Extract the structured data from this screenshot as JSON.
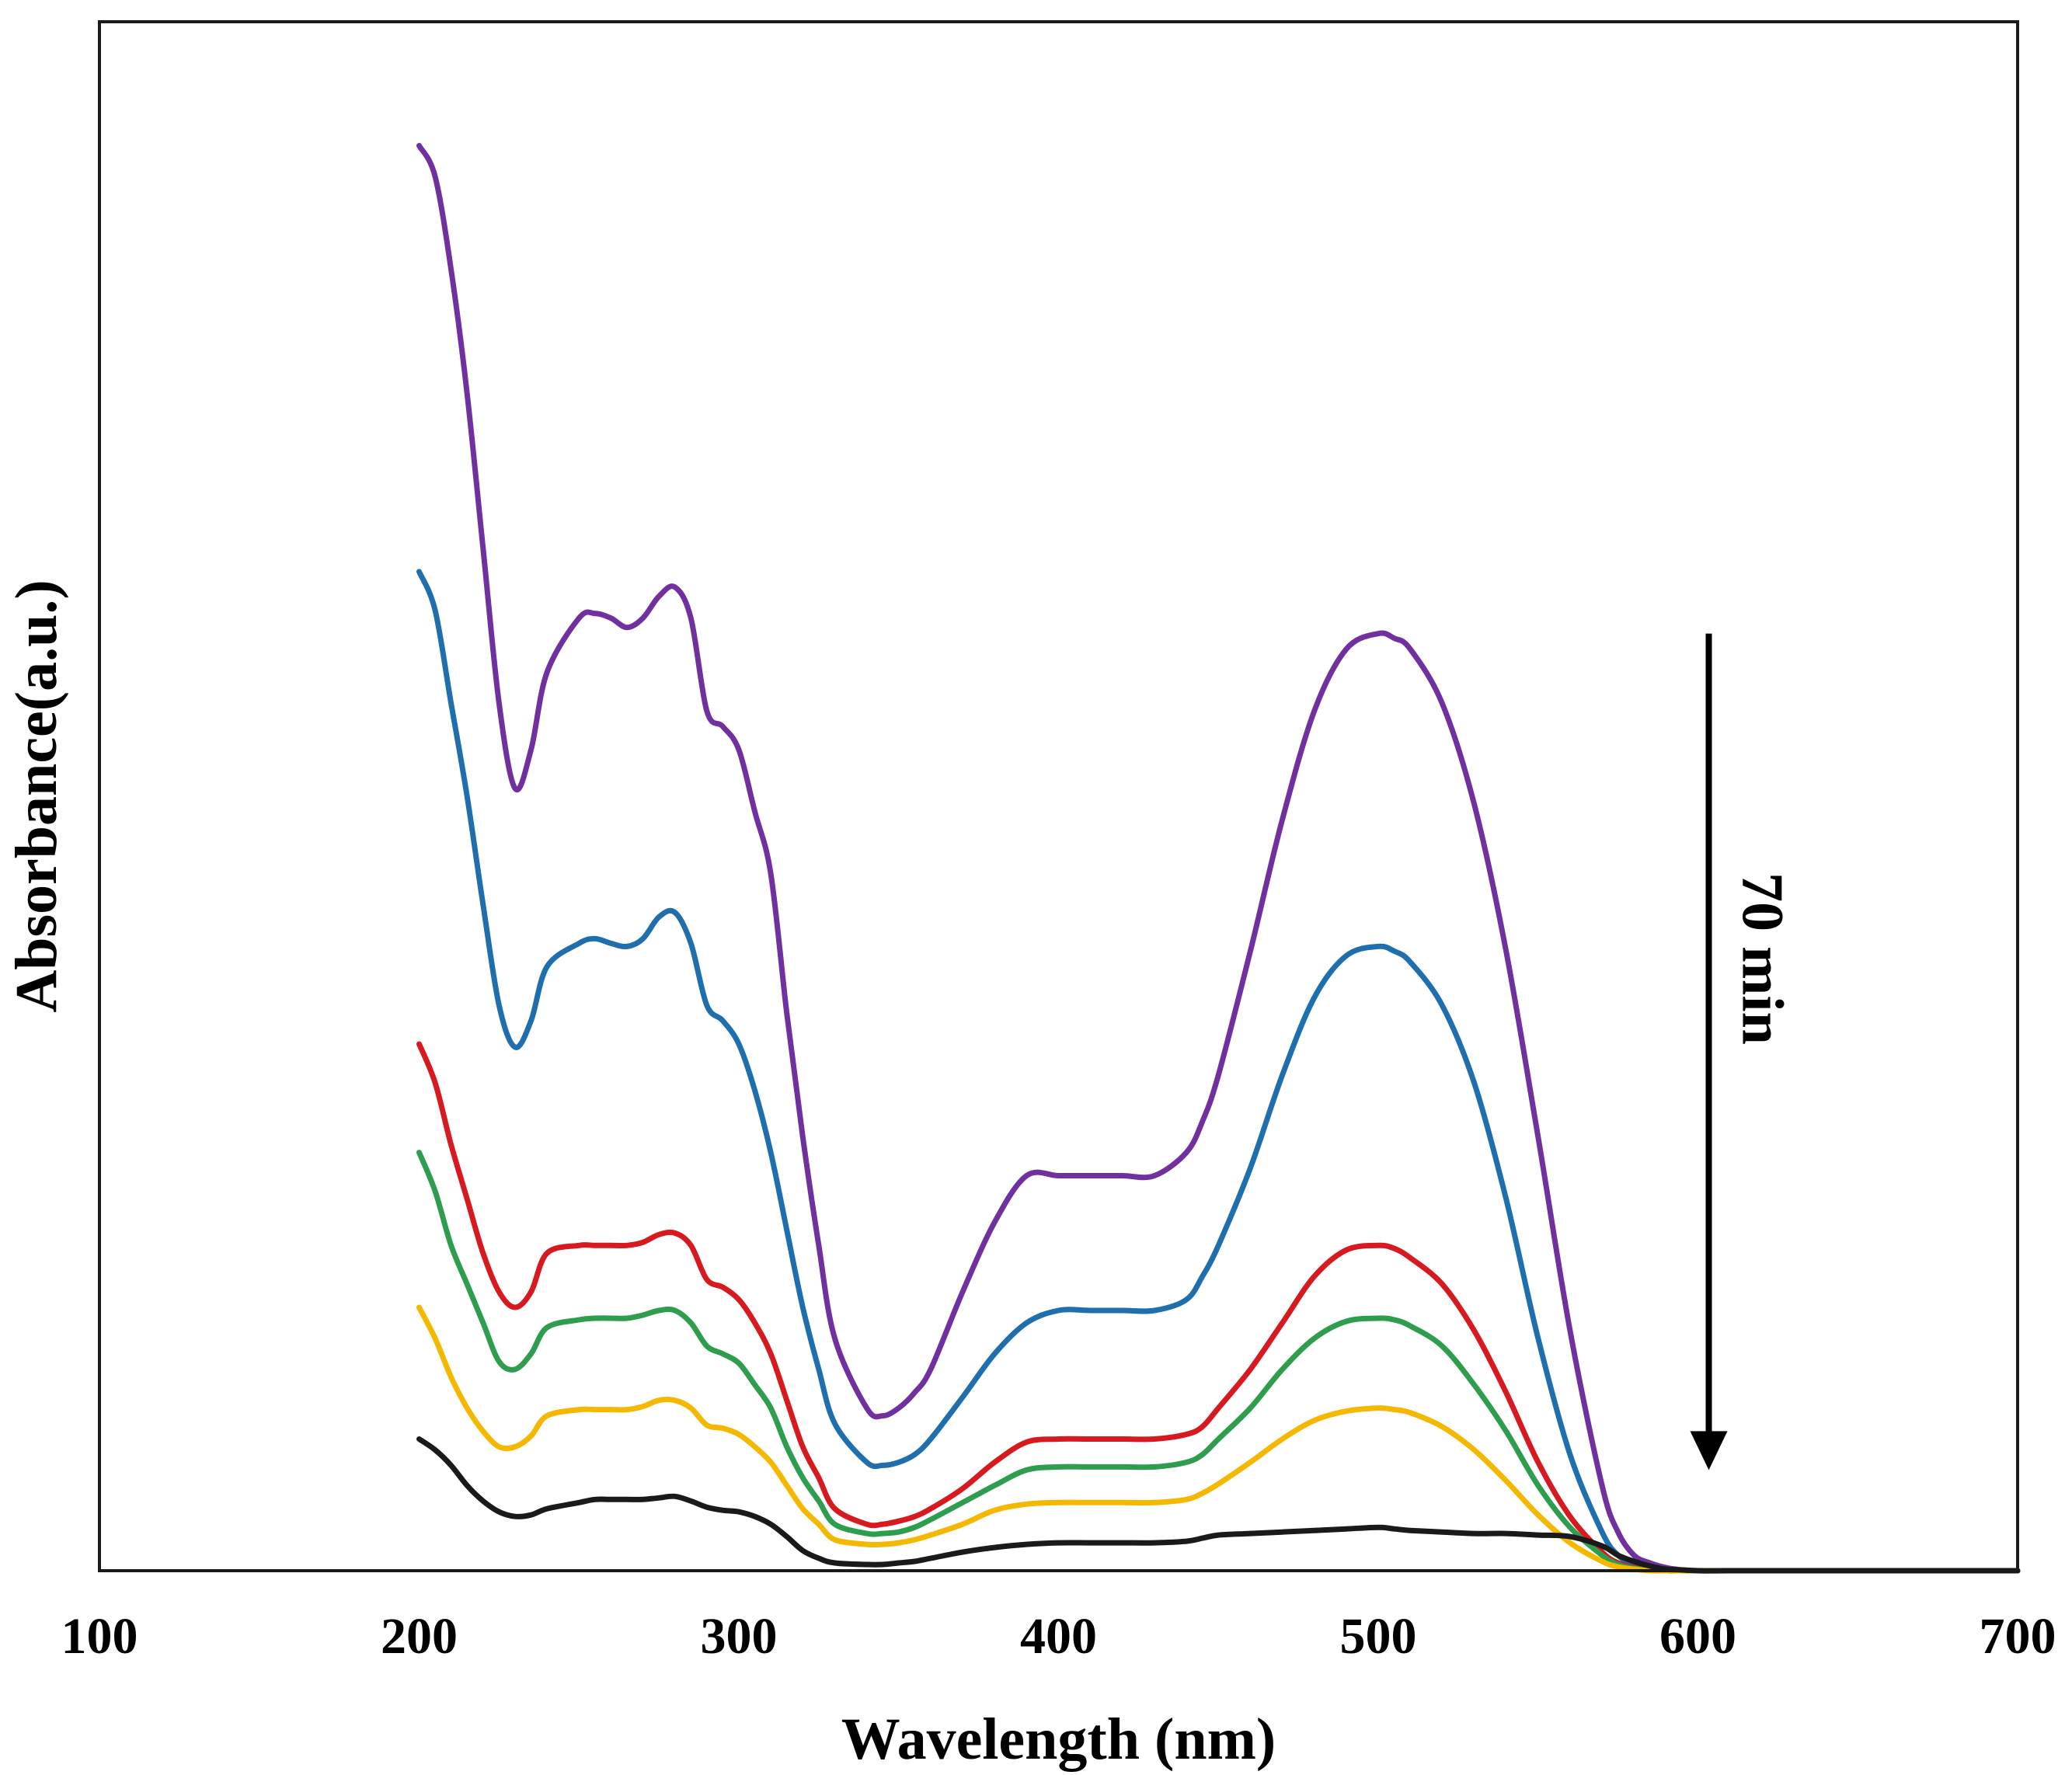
{
  "chart_data": {
    "type": "line",
    "title": "",
    "xlabel": "Wavelength (nm)",
    "ylabel": "Absorbance(a.u.)",
    "xlim": [
      100,
      700
    ],
    "ylim": [
      0,
      100
    ],
    "xticks": [
      100,
      200,
      300,
      400,
      500,
      600,
      700
    ],
    "yticks_shown": false,
    "grid": false,
    "legend": "none",
    "annotation": {
      "text": "70 min",
      "arrow": "down",
      "arrow_x": 600,
      "arrow_y_from": 60.5,
      "arrow_y_to": 6.5
    },
    "x": [
      200,
      205,
      210,
      215,
      220,
      225,
      230,
      235,
      240,
      250,
      255,
      260,
      265,
      270,
      275,
      280,
      285,
      290,
      295,
      300,
      305,
      310,
      315,
      320,
      325,
      330,
      340,
      345,
      350,
      355,
      360,
      370,
      380,
      390,
      400,
      410,
      420,
      430,
      440,
      445,
      450,
      460,
      470,
      480,
      490,
      500,
      505,
      510,
      520,
      530,
      540,
      550,
      560,
      570,
      575,
      580,
      585,
      590,
      595,
      600,
      610,
      650,
      700
    ],
    "series": [
      {
        "name": "purple",
        "color": "#7030A0",
        "values": [
          92,
          90,
          84,
          76,
          66,
          56,
          50.5,
          53,
          58,
          61.5,
          61.8,
          61.5,
          60.9,
          61.5,
          62.9,
          63.5,
          61.5,
          55.5,
          54.5,
          53,
          49,
          45,
          36,
          28,
          21,
          15,
          10.5,
          10,
          10.5,
          11.5,
          13,
          18,
          22.5,
          25.5,
          25.5,
          25.5,
          25.5,
          25.5,
          27,
          29,
          32,
          40,
          48.5,
          55.5,
          59.5,
          60.5,
          60.2,
          59.5,
          56,
          49.5,
          40,
          28,
          15.5,
          5.5,
          2.5,
          1,
          0.5,
          0.2,
          0.05,
          0,
          0,
          0,
          0
        ]
      },
      {
        "name": "blue",
        "color": "#1F6FAF",
        "values": [
          64.5,
          62,
          56,
          50,
          43,
          36.5,
          33.8,
          35.5,
          39,
          40.5,
          40.8,
          40.5,
          40.3,
          40.8,
          42.2,
          42.5,
          40.5,
          36.5,
          35.5,
          34,
          31,
          27,
          22,
          17,
          13,
          9.5,
          7,
          6.8,
          7,
          7.5,
          8.5,
          11.2,
          14,
          16,
          16.8,
          16.8,
          16.8,
          16.8,
          17.5,
          19,
          21,
          26,
          32,
          37,
          39.7,
          40.3,
          40,
          39.3,
          36.5,
          31.5,
          24,
          15,
          7.5,
          2.5,
          1,
          0.4,
          0.15,
          0.05,
          0,
          0,
          0,
          0,
          0
        ]
      },
      {
        "name": "red",
        "color": "#D71920",
        "values": [
          34,
          31.5,
          27.5,
          24,
          20.5,
          18,
          17,
          18,
          20.5,
          21,
          21,
          21,
          21,
          21.2,
          21.7,
          21.8,
          21,
          18.8,
          18.3,
          17.5,
          16,
          14,
          11,
          8,
          6,
          4,
          3,
          3,
          3.2,
          3.5,
          4,
          5.3,
          7,
          8.3,
          8.5,
          8.5,
          8.5,
          8.5,
          8.8,
          9.3,
          10.5,
          13,
          16,
          19,
          20.7,
          21,
          20.8,
          20.2,
          18.5,
          15.5,
          11.5,
          7,
          3.5,
          1.2,
          0.5,
          0.2,
          0.05,
          0,
          0,
          0,
          0,
          0,
          0
        ]
      },
      {
        "name": "green",
        "color": "#2E9E4E",
        "values": [
          27,
          24.5,
          21,
          18.5,
          16,
          13.5,
          13,
          14,
          15.7,
          16.2,
          16.3,
          16.3,
          16.3,
          16.5,
          16.8,
          16.8,
          16,
          14.5,
          14,
          13.4,
          12,
          10.5,
          8,
          6,
          4.5,
          3,
          2.4,
          2.4,
          2.5,
          2.8,
          3.3,
          4.4,
          5.5,
          6.5,
          6.7,
          6.7,
          6.7,
          6.7,
          7,
          7.5,
          8.5,
          10.5,
          13,
          15,
          16.1,
          16.3,
          16.2,
          15.8,
          14.5,
          12,
          9,
          5.5,
          2.8,
          1,
          0.4,
          0.15,
          0.05,
          0,
          0,
          0,
          0,
          0,
          0
        ]
      },
      {
        "name": "yellow",
        "color": "#F5B800",
        "values": [
          17,
          15,
          12.5,
          10.5,
          9,
          8,
          8,
          8.7,
          10,
          10.4,
          10.4,
          10.4,
          10.4,
          10.6,
          11,
          11,
          10.5,
          9.4,
          9.2,
          8.8,
          8,
          7,
          5.5,
          4,
          3,
          2,
          1.7,
          1.7,
          1.8,
          2,
          2.3,
          3,
          3.9,
          4.3,
          4.4,
          4.4,
          4.4,
          4.4,
          4.6,
          5,
          5.6,
          7,
          8.5,
          9.7,
          10.3,
          10.5,
          10.4,
          10.2,
          9.3,
          7.8,
          5.8,
          3.6,
          1.8,
          0.6,
          0.25,
          0.1,
          0,
          0,
          0,
          0,
          0,
          0,
          0
        ]
      },
      {
        "name": "black",
        "color": "#1A1A1A",
        "values": [
          8.5,
          7.8,
          6.8,
          5.5,
          4.5,
          3.8,
          3.5,
          3.6,
          4,
          4.4,
          4.6,
          4.6,
          4.6,
          4.6,
          4.7,
          4.8,
          4.5,
          4.1,
          3.9,
          3.8,
          3.5,
          3,
          2.2,
          1.3,
          0.8,
          0.5,
          0.4,
          0.4,
          0.5,
          0.6,
          0.8,
          1.2,
          1.5,
          1.7,
          1.8,
          1.8,
          1.8,
          1.8,
          1.9,
          2.1,
          2.3,
          2.4,
          2.5,
          2.6,
          2.7,
          2.8,
          2.7,
          2.6,
          2.5,
          2.4,
          2.4,
          2.3,
          2.2,
          1.6,
          1,
          0.6,
          0.3,
          0.1,
          0.05,
          0,
          0,
          0,
          0
        ]
      }
    ]
  }
}
